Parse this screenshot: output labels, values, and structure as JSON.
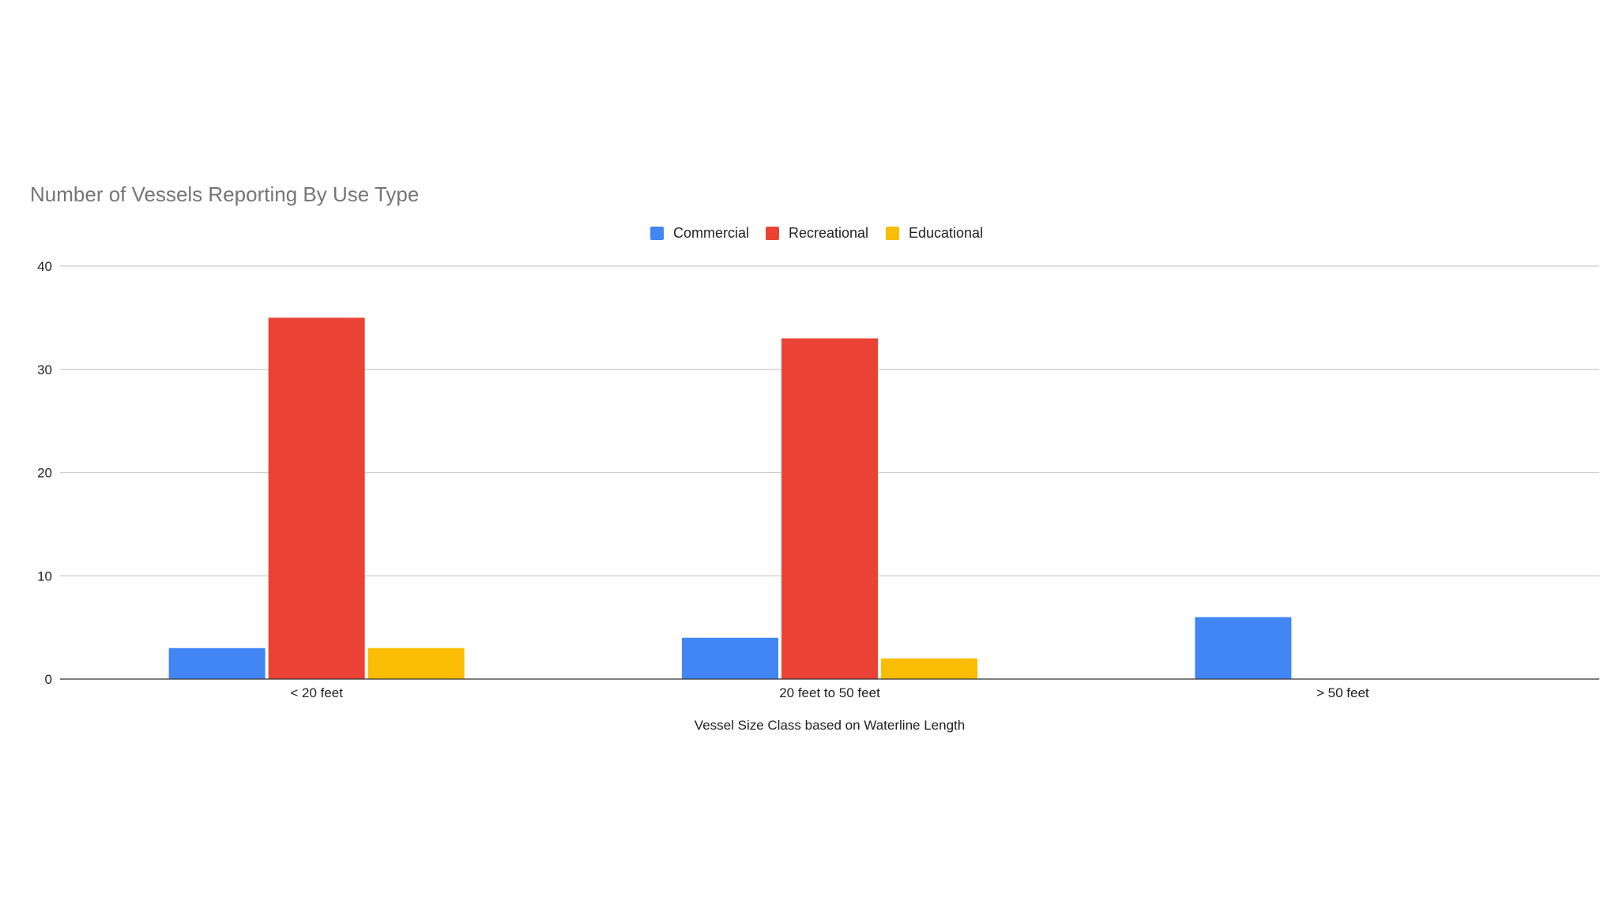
{
  "chart_data": {
    "type": "bar",
    "title": "Number of Vessels Reporting By Use Type",
    "xlabel": "Vessel Size Class based on Waterline Length",
    "ylabel": "",
    "categories": [
      "< 20 feet",
      "20 feet to 50 feet",
      "> 50 feet"
    ],
    "series": [
      {
        "name": "Commercial",
        "values": [
          3,
          4,
          6
        ],
        "color": "#4285F4"
      },
      {
        "name": "Recreational",
        "values": [
          35,
          33,
          0
        ],
        "color": "#EA4335"
      },
      {
        "name": "Educational",
        "values": [
          3,
          2,
          0
        ],
        "color": "#FBBC04"
      }
    ],
    "ylim": [
      0,
      40
    ],
    "yticks": [
      0,
      10,
      20,
      30,
      40
    ],
    "grid": true,
    "legend_position": "top-center"
  }
}
